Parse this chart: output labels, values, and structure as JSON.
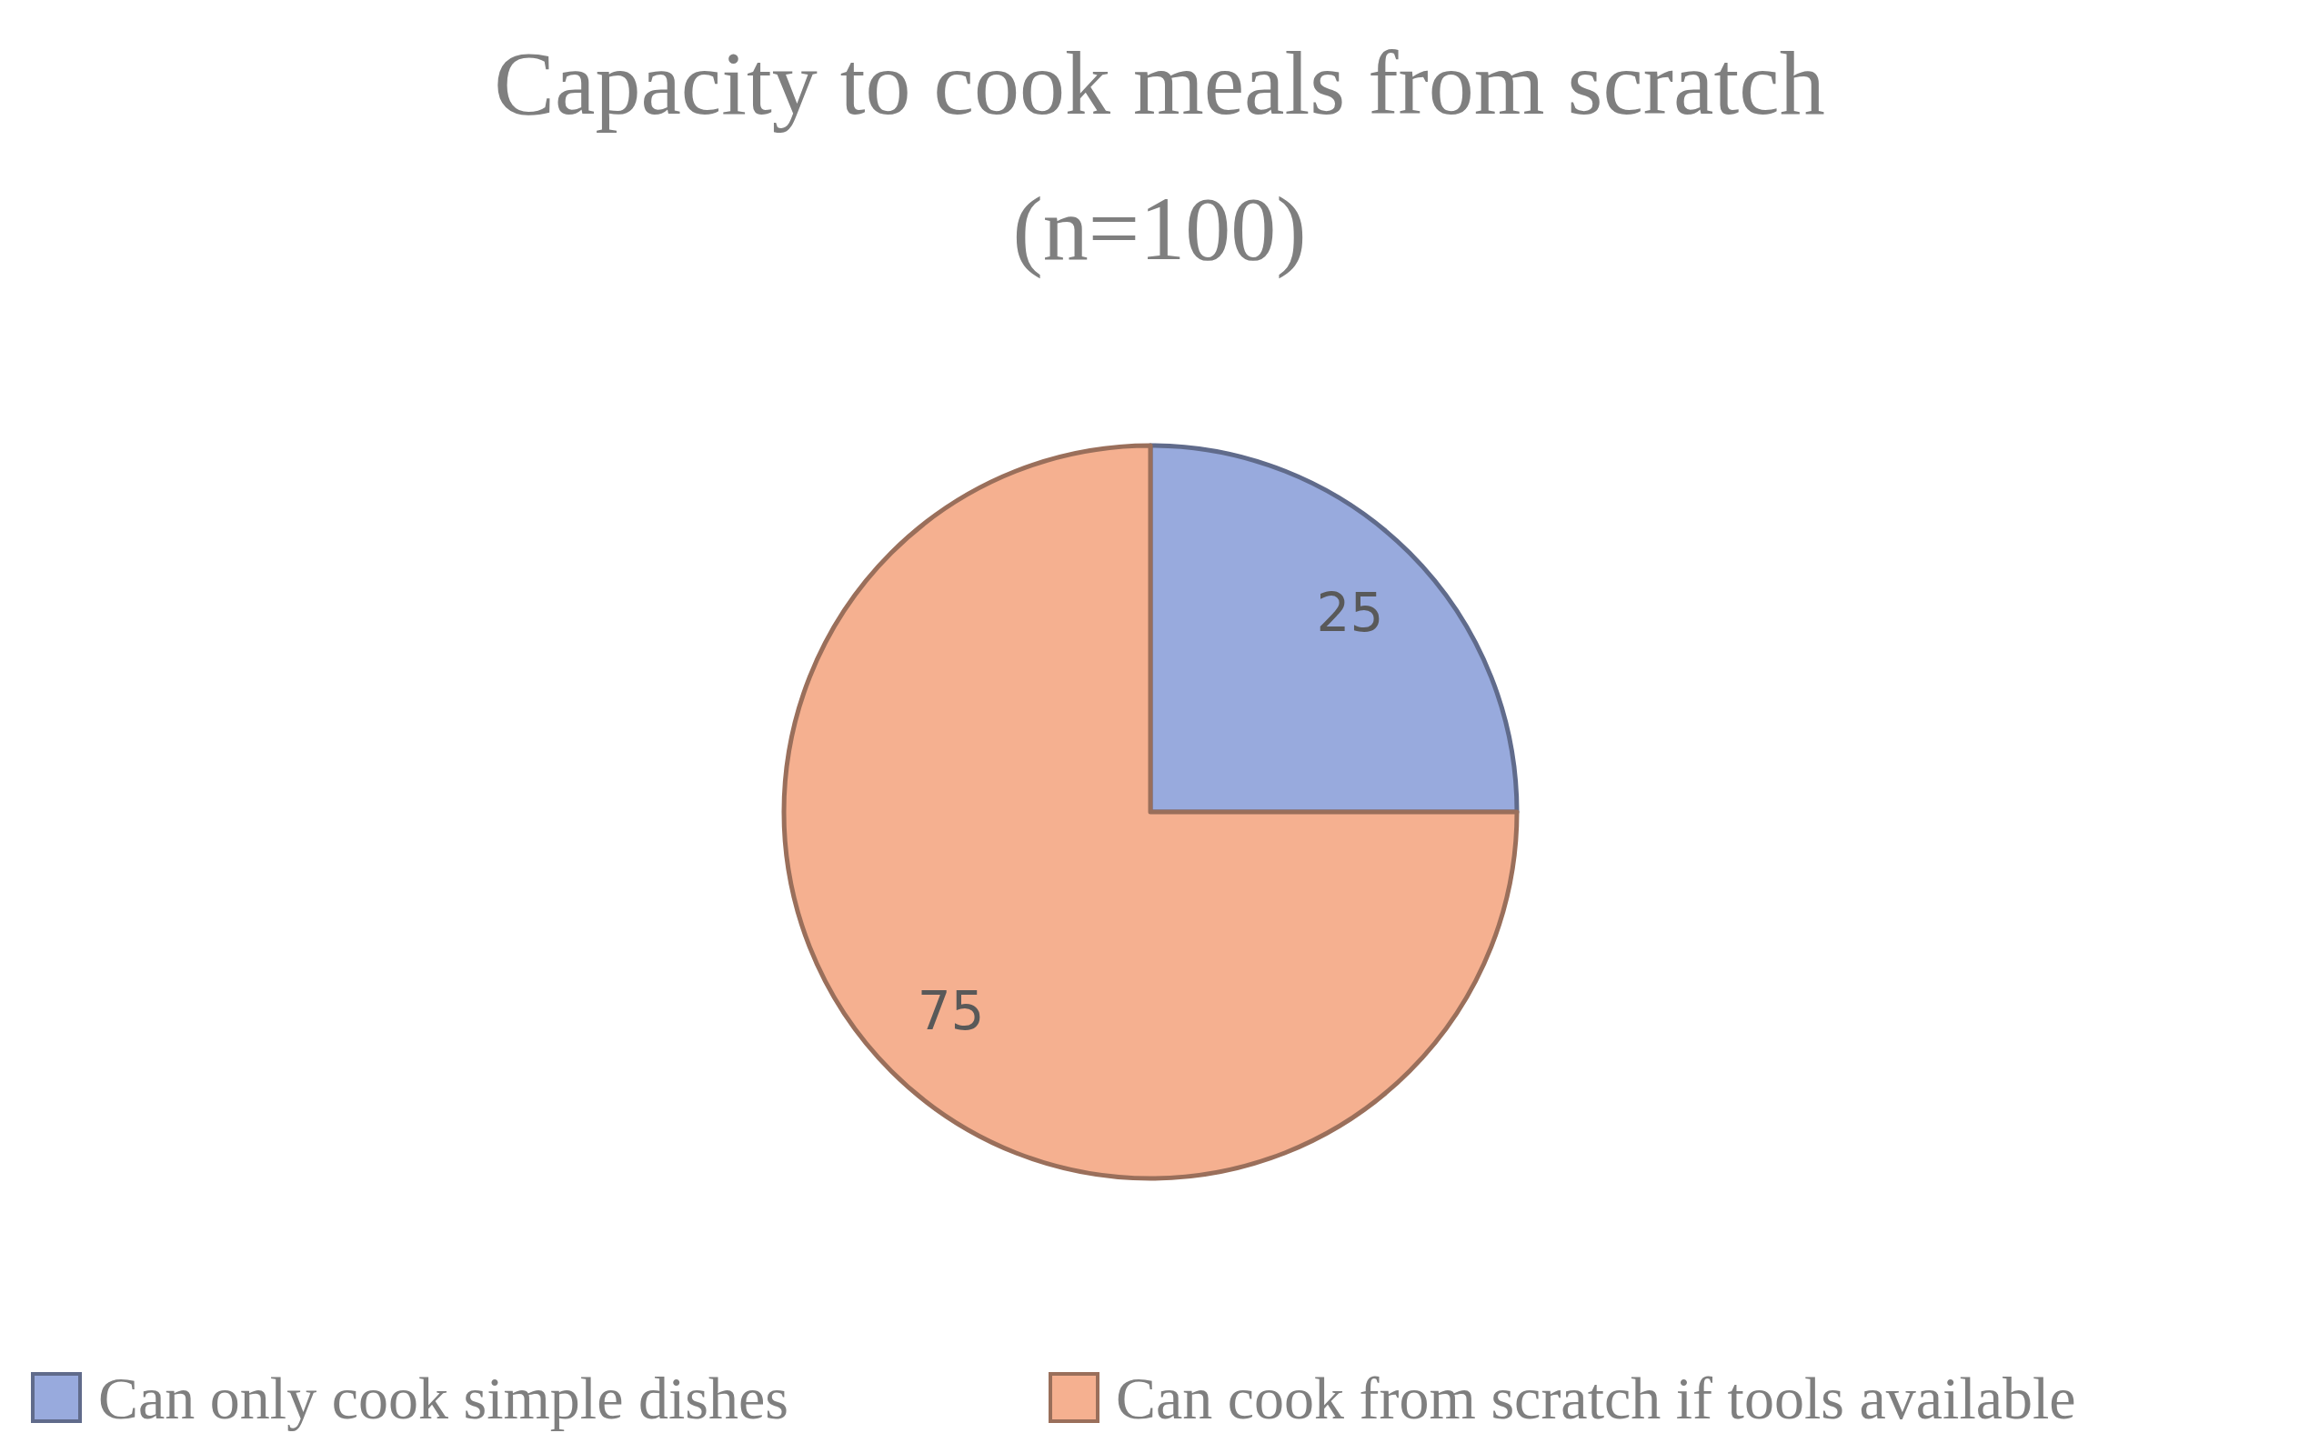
{
  "chart_data": {
    "type": "pie",
    "title": "Capacity to cook meals from scratch\n(n=100)",
    "categories": [
      "Can only cook simple dishes",
      "Can cook from scratch if tools available"
    ],
    "values": [
      25,
      75
    ],
    "colors": [
      "#98aadd",
      "#f5b090"
    ],
    "data_labels": true,
    "legend": "bottom"
  }
}
